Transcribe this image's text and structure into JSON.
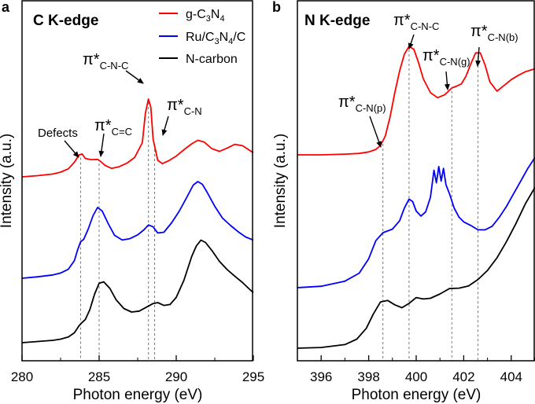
{
  "chart_data": [
    {
      "type": "line",
      "panel_letter": "a",
      "title": "C K-edge",
      "xlabel": "Photon energy (eV)",
      "ylabel": "Intensity (a.u.)",
      "xlim": [
        280,
        295
      ],
      "xticks": [
        280,
        285,
        290,
        295
      ],
      "yticks": "none",
      "grid": false,
      "legend_position": "top-right",
      "series": [
        {
          "name": "g-C3N4",
          "color": "#ff0000",
          "x": [
            280,
            281,
            282,
            282.5,
            283,
            283.4,
            283.7,
            283.9,
            284.1,
            284.5,
            284.9,
            285.1,
            285.4,
            285.8,
            286.3,
            286.8,
            287.3,
            287.8,
            288.0,
            288.2,
            288.35,
            288.5,
            288.8,
            289.1,
            289.5,
            290.0,
            290.5,
            291.0,
            291.4,
            291.8,
            292.3,
            292.8,
            293.3,
            293.8,
            294.3,
            295
          ],
          "y": [
            0.0,
            0.05,
            0.12,
            0.2,
            0.34,
            0.62,
            0.93,
            0.97,
            0.78,
            0.73,
            0.74,
            0.65,
            0.48,
            0.36,
            0.43,
            0.58,
            0.82,
            1.45,
            2.7,
            3.3,
            2.95,
            1.6,
            0.7,
            0.56,
            0.68,
            0.88,
            1.15,
            1.4,
            1.55,
            1.48,
            1.2,
            1.08,
            1.22,
            1.38,
            1.32,
            1.02
          ]
        },
        {
          "name": "Ru/C3N4/C",
          "color": "#0000ff",
          "x": [
            280,
            281,
            282,
            282.5,
            283,
            283.4,
            283.6,
            283.8,
            284.0,
            284.3,
            284.6,
            284.9,
            285.2,
            285.6,
            286.0,
            286.5,
            287.0,
            287.5,
            287.9,
            288.2,
            288.5,
            288.8,
            289.2,
            289.7,
            290.2,
            290.7,
            291.1,
            291.4,
            291.7,
            292.0,
            292.5,
            293.0,
            293.5,
            294.0,
            294.5,
            295
          ],
          "y": [
            0.0,
            0.06,
            0.14,
            0.22,
            0.38,
            0.75,
            1.2,
            1.55,
            1.65,
            2.1,
            2.65,
            3.0,
            2.85,
            2.3,
            1.82,
            1.62,
            1.68,
            1.84,
            2.05,
            2.26,
            2.18,
            1.92,
            1.95,
            2.35,
            2.85,
            3.45,
            3.95,
            4.1,
            3.98,
            3.65,
            3.05,
            2.55,
            2.25,
            1.98,
            1.75,
            1.62
          ]
        },
        {
          "name": "N-carbon",
          "color": "#000000",
          "x": [
            280,
            281,
            282,
            282.5,
            283,
            283.4,
            283.7,
            283.9,
            284.1,
            284.4,
            284.7,
            285.0,
            285.3,
            285.7,
            286.1,
            286.6,
            287.1,
            287.6,
            288.1,
            288.5,
            288.8,
            289.2,
            289.6,
            290.0,
            290.5,
            291.0,
            291.3,
            291.6,
            291.9,
            292.3,
            292.8,
            293.3,
            293.8,
            294.3,
            294.7,
            295
          ],
          "y": [
            0.0,
            0.05,
            0.1,
            0.15,
            0.24,
            0.42,
            0.72,
            0.86,
            0.98,
            1.4,
            2.05,
            2.52,
            2.58,
            2.3,
            1.82,
            1.45,
            1.3,
            1.34,
            1.52,
            1.66,
            1.7,
            1.58,
            1.62,
            1.92,
            2.65,
            3.65,
            4.1,
            4.35,
            4.25,
            3.92,
            3.45,
            3.1,
            2.82,
            2.55,
            2.3,
            2.12
          ]
        }
      ],
      "reference_lines_x": [
        283.8,
        285.0,
        288.2,
        288.6
      ],
      "annotations": [
        {
          "text": "Defects",
          "points_to": [
            283.8,
            "g-C3N4"
          ]
        },
        {
          "main": "π*",
          "sub": "C=C",
          "points_to": [
            285.0,
            "g-C3N4"
          ]
        },
        {
          "main": "π*",
          "sub": "C-N-C",
          "points_to": [
            288.2,
            "g-C3N4"
          ]
        },
        {
          "main": "π*",
          "sub": "C-N",
          "points_to": [
            288.6,
            "g-C3N4"
          ]
        }
      ]
    },
    {
      "type": "line",
      "panel_letter": "b",
      "title": "N K-edge",
      "xlabel": "Photon energy (eV)",
      "ylabel": "Intensity (a.u.)",
      "xlim": [
        395,
        405
      ],
      "xticks": [
        396,
        398,
        400,
        402,
        404
      ],
      "yticks": "none",
      "grid": false,
      "series": [
        {
          "name": "g-C3N4",
          "color": "#ff0000",
          "x": [
            395,
            396,
            397,
            397.6,
            398.0,
            398.3,
            398.5,
            398.7,
            398.9,
            399.1,
            399.3,
            399.5,
            399.7,
            399.9,
            400.1,
            400.3,
            400.6,
            400.9,
            401.2,
            401.5,
            401.7,
            401.9,
            402.1,
            402.3,
            402.5,
            402.7,
            402.9,
            403.1,
            403.4,
            403.7,
            404.0,
            404.3,
            404.6,
            405
          ],
          "y": [
            0.0,
            0.0,
            0.02,
            0.04,
            0.08,
            0.15,
            0.26,
            0.52,
            1.05,
            1.72,
            2.32,
            2.78,
            3.0,
            2.92,
            2.55,
            2.1,
            1.72,
            1.58,
            1.66,
            1.85,
            1.9,
            1.96,
            2.18,
            2.52,
            2.82,
            2.82,
            2.48,
            2.02,
            1.76,
            1.92,
            2.08,
            2.2,
            2.3,
            2.38
          ]
        },
        {
          "name": "Ru/C3N4/C",
          "color": "#0000ff",
          "x": [
            395,
            396,
            397,
            397.6,
            398.0,
            398.3,
            398.6,
            399.0,
            399.3,
            399.5,
            399.7,
            399.85,
            400.0,
            400.2,
            400.4,
            400.6,
            400.75,
            400.85,
            400.95,
            401.05,
            401.15,
            401.25,
            401.4,
            401.6,
            401.8,
            402.0,
            402.3,
            402.6,
            402.9,
            403.2,
            403.5,
            403.8,
            404.1,
            404.4,
            404.7,
            405
          ],
          "y": [
            0.0,
            0.04,
            0.18,
            0.4,
            0.8,
            1.3,
            1.52,
            1.62,
            1.85,
            2.2,
            2.45,
            2.38,
            2.12,
            1.98,
            2.1,
            2.5,
            3.25,
            2.9,
            3.35,
            2.95,
            3.3,
            2.85,
            2.6,
            2.2,
            1.95,
            1.82,
            1.72,
            1.6,
            1.6,
            1.7,
            1.95,
            2.25,
            2.6,
            2.95,
            3.3,
            3.6
          ]
        },
        {
          "name": "N-carbon",
          "color": "#000000",
          "x": [
            395,
            396,
            397,
            397.5,
            397.9,
            398.2,
            398.5,
            398.8,
            399.1,
            399.4,
            399.7,
            400.0,
            400.3,
            400.6,
            401.0,
            401.4,
            401.8,
            402.2,
            402.6,
            403.0,
            403.4,
            403.8,
            404.2,
            404.6,
            405
          ],
          "y": [
            0.0,
            0.02,
            0.1,
            0.25,
            0.55,
            0.95,
            1.28,
            1.32,
            1.2,
            1.12,
            1.24,
            1.4,
            1.36,
            1.38,
            1.5,
            1.65,
            1.66,
            1.72,
            1.9,
            2.15,
            2.5,
            2.95,
            3.45,
            4.0,
            4.45
          ]
        }
      ],
      "reference_lines_x": [
        398.6,
        399.7,
        401.5,
        402.6
      ],
      "annotations": [
        {
          "main": "π*",
          "sub": "C-N(p)",
          "points_to": [
            398.6,
            "g-C3N4"
          ]
        },
        {
          "main": "π*",
          "sub": "C-N-C",
          "points_to": [
            399.7,
            "g-C3N4"
          ]
        },
        {
          "main": "π*",
          "sub": "C-N(g)",
          "points_to": [
            401.5,
            "g-C3N4"
          ]
        },
        {
          "main": "π*",
          "sub": "C-N(b)",
          "points_to": [
            402.6,
            "g-C3N4"
          ]
        }
      ]
    }
  ]
}
